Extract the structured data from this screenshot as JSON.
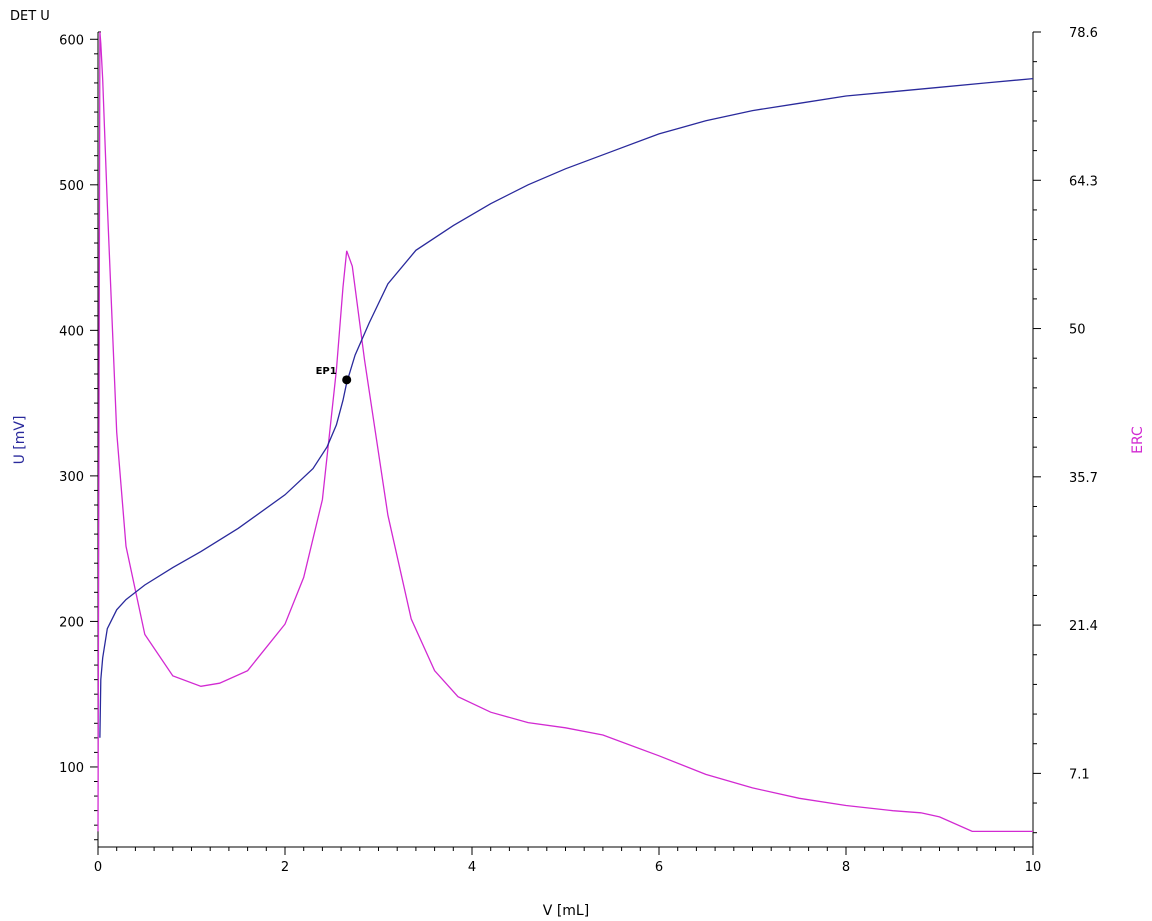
{
  "chart_data": {
    "type": "line",
    "title": "DET U",
    "xlabel": "V [mL]",
    "ylabel_left": "U [mV]",
    "ylabel_right": "ERC",
    "xlim": [
      0,
      10
    ],
    "ylim_left": [
      45,
      605
    ],
    "ylim_right": [
      0,
      78.6
    ],
    "x_ticks": [
      "0",
      "2",
      "4",
      "6",
      "8",
      "10"
    ],
    "y_left_ticks": [
      "100",
      "200",
      "300",
      "400",
      "500",
      "600"
    ],
    "y_right_ticks": [
      "7.1",
      "21.4",
      "35.7",
      "50",
      "64.3",
      "78.6"
    ],
    "grid": false,
    "colors": {
      "U": "#2a2a9c",
      "ERC": "#d22ad2",
      "axis": "#000000"
    },
    "series": [
      {
        "name": "U [mV]",
        "axis": "left",
        "x": [
          0.02,
          0.03,
          0.05,
          0.1,
          0.2,
          0.3,
          0.5,
          0.8,
          1.1,
          1.5,
          2.0,
          2.3,
          2.45,
          2.55,
          2.62,
          2.66,
          2.75,
          2.9,
          3.1,
          3.4,
          3.8,
          4.2,
          4.6,
          5.0,
          5.5,
          6.0,
          6.5,
          7.0,
          7.5,
          8.0,
          8.5,
          9.0,
          9.5,
          10.0
        ],
        "values": [
          120,
          160,
          175,
          195,
          208,
          215,
          225,
          237,
          248,
          264,
          287,
          305,
          320,
          335,
          352,
          364,
          383,
          405,
          432,
          455,
          472,
          487,
          500,
          511,
          523,
          535,
          544,
          551,
          556,
          561,
          564,
          567,
          570,
          573
        ]
      },
      {
        "name": "ERC",
        "axis": "right",
        "x": [
          0.0,
          0.02,
          0.03,
          0.05,
          0.1,
          0.15,
          0.2,
          0.3,
          0.5,
          0.8,
          1.1,
          1.3,
          1.6,
          2.0,
          2.2,
          2.4,
          2.55,
          2.62,
          2.66,
          2.72,
          2.85,
          3.1,
          3.35,
          3.6,
          3.85,
          4.2,
          4.6,
          5.0,
          5.4,
          6.0,
          6.5,
          7.0,
          7.5,
          8.0,
          8.5,
          8.8,
          9.0,
          9.35,
          9.5,
          10.0
        ],
        "values": [
          1.5,
          78.6,
          77.5,
          74.0,
          62.0,
          51.0,
          40.0,
          29.0,
          20.5,
          16.5,
          15.5,
          15.8,
          17.0,
          21.5,
          26.0,
          33.5,
          46.0,
          54.0,
          57.5,
          56.0,
          47.0,
          32.0,
          22.0,
          17.0,
          14.5,
          13.0,
          12.0,
          11.5,
          10.8,
          8.8,
          7.0,
          5.7,
          4.7,
          4.0,
          3.5,
          3.3,
          2.9,
          1.5,
          1.5,
          1.5
        ]
      }
    ],
    "annotations": [
      {
        "label": "EP1",
        "x": 2.66,
        "y": 366,
        "axis": "left"
      }
    ]
  }
}
